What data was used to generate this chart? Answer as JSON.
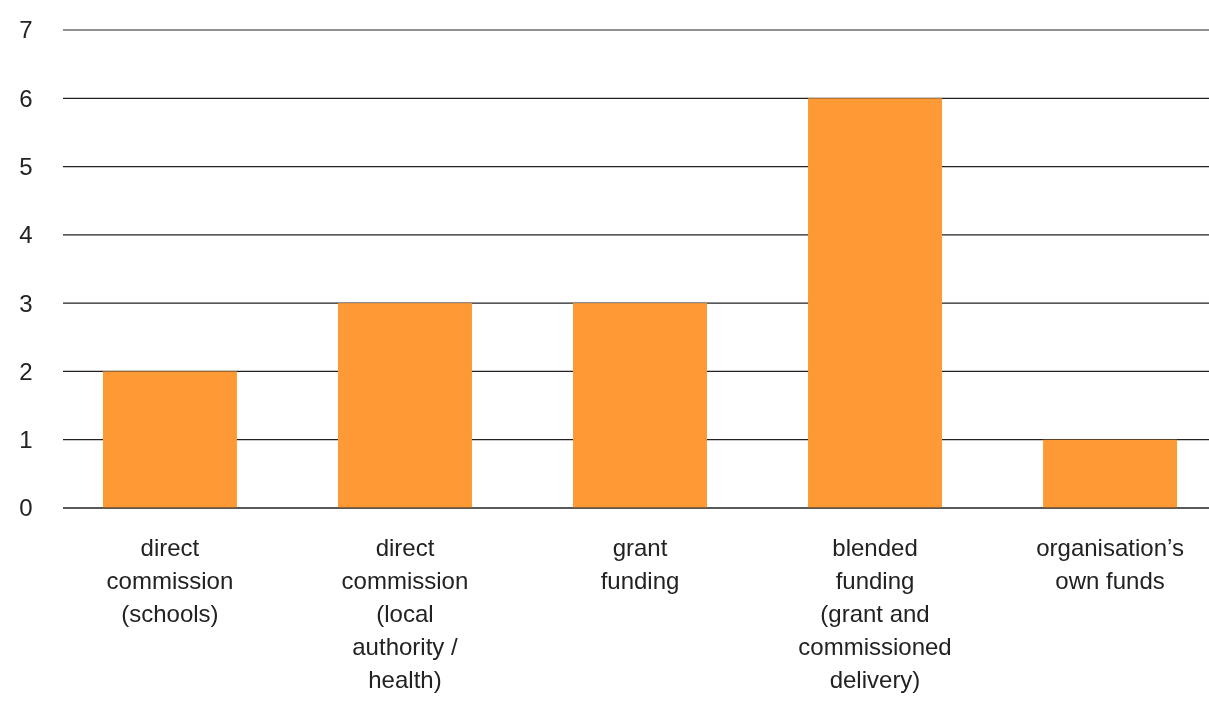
{
  "chart_data": {
    "type": "bar",
    "categories": [
      "direct commission (schools)",
      "direct commission (local authority / health)",
      "grant funding",
      "blended funding (grant and commissioned delivery)",
      "organisation’s own funds"
    ],
    "values": [
      2,
      3,
      3,
      6,
      1
    ],
    "color": "#fd9a35",
    "ylim": [
      0,
      7
    ],
    "yticks": [
      0,
      1,
      2,
      3,
      4,
      5,
      6,
      7
    ],
    "grid": "y"
  }
}
